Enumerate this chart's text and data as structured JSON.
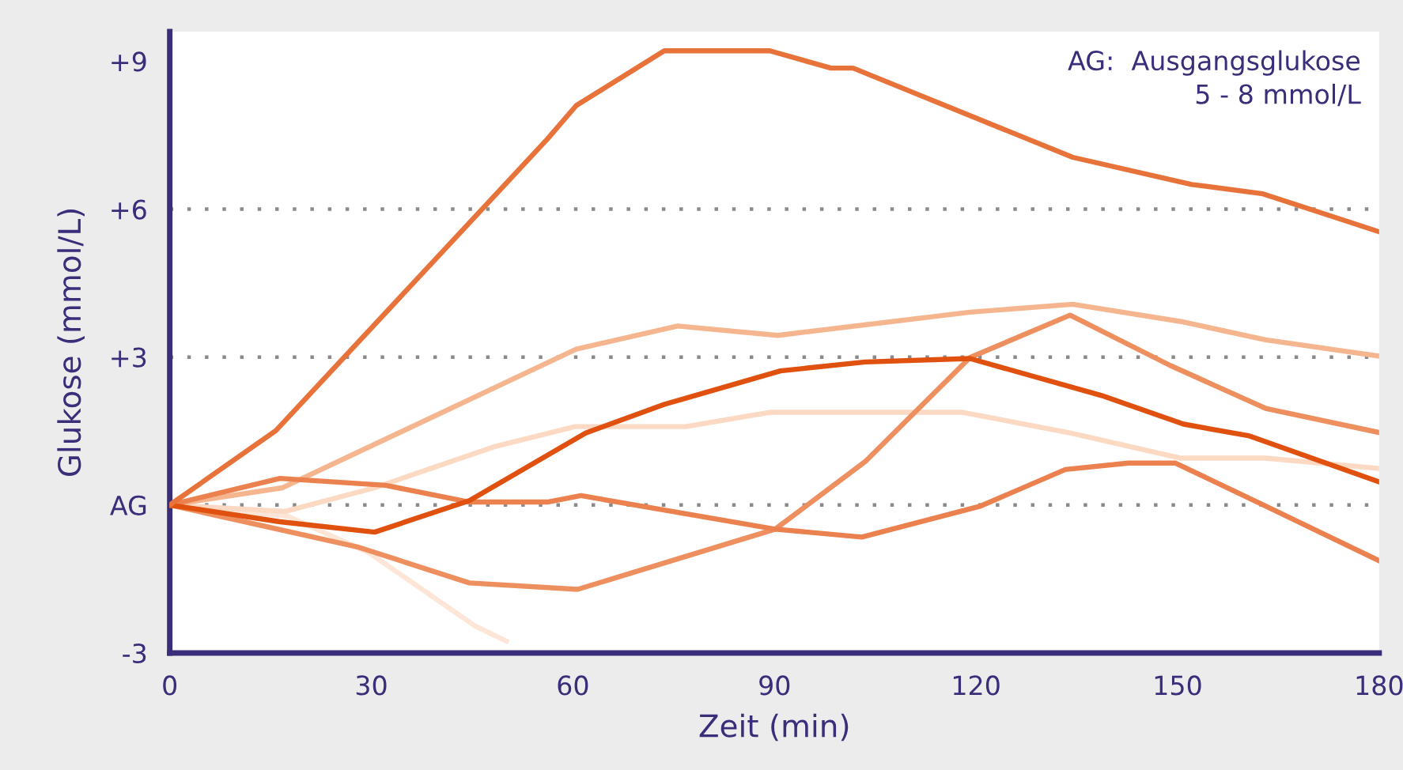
{
  "chart_data": {
    "type": "line",
    "xlabel": "Zeit (min)",
    "ylabel": "Glukose (mmol/L)",
    "annotations": [
      "AG:  Ausgangsglukose\n5 - 8 mmol/L"
    ],
    "xlim": [
      0,
      180
    ],
    "xticks": [
      0,
      30,
      60,
      90,
      120,
      150,
      180
    ],
    "ylim": [
      -3,
      9.6
    ],
    "yticks": [
      {
        "value": 9,
        "label": "+9"
      },
      {
        "value": 6,
        "label": "+6"
      },
      {
        "value": 3,
        "label": "+3"
      },
      {
        "value": 0,
        "label": "AG"
      },
      -3
    ],
    "grid": false,
    "marker": "none",
    "line_style": "solid",
    "ref_lines": [
      {
        "axis": "y",
        "value": 6,
        "label": null,
        "color": "#8a8a8a",
        "line_style": "dotted"
      },
      {
        "axis": "y",
        "value": 3,
        "label": null,
        "color": "#8a8a8a",
        "line_style": "dotted"
      },
      {
        "axis": "y",
        "value": 0,
        "label": null,
        "color": "#8a8a8a",
        "line_style": "dotted"
      }
    ],
    "series": [
      {
        "color": "#fde6d8",
        "x": [
          0,
          17.6,
          29.7,
          45.4,
          50.1
        ],
        "values": [
          0,
          -0.23,
          -0.97,
          -2.45,
          -2.76
        ]
      },
      {
        "color": "#fcd9c3",
        "x": [
          0,
          17.2,
          30.5,
          48.5,
          60.3,
          76.8,
          89.3,
          118,
          134,
          150.5,
          163.1,
          180
        ],
        "values": [
          0,
          -0.13,
          0.35,
          1.19,
          1.59,
          1.59,
          1.88,
          1.88,
          1.46,
          0.95,
          0.95,
          0.74
        ]
      },
      {
        "color": "#f5b68f",
        "x": [
          0,
          16.8,
          60.5,
          75.6,
          90.5,
          119.1,
          134.4,
          150.5,
          163.1,
          180
        ],
        "values": [
          0,
          0.35,
          3.16,
          3.63,
          3.44,
          3.91,
          4.07,
          3.72,
          3.35,
          3.02
        ]
      },
      {
        "color": "#ee8f5f",
        "x": [
          0,
          28.2,
          44.6,
          60.7,
          90.1,
          103.5,
          119.1,
          134,
          148.9,
          163.1,
          180
        ],
        "values": [
          0,
          -0.86,
          -1.58,
          -1.71,
          -0.49,
          0.88,
          2.99,
          3.85,
          2.83,
          1.96,
          1.47
        ]
      },
      {
        "color": "#ec8150",
        "x": [
          0,
          16.4,
          32.1,
          44.6,
          56.2,
          61.2,
          90.1,
          103,
          120.7,
          133.3,
          142.7,
          149.7,
          163.1,
          180
        ],
        "values": [
          0,
          0.54,
          0.4,
          0.06,
          0.06,
          0.19,
          -0.49,
          -0.65,
          -0.02,
          0.72,
          0.85,
          0.85,
          -0.02,
          -1.13
        ]
      },
      {
        "color": "#e0500f",
        "x": [
          0,
          16.4,
          30.5,
          44.6,
          61.9,
          73.6,
          90.9,
          103.5,
          119.1,
          138.7,
          150.9,
          160.7,
          180
        ],
        "values": [
          0,
          -0.34,
          -0.55,
          0.09,
          1.46,
          2.04,
          2.72,
          2.9,
          2.97,
          2.22,
          1.64,
          1.4,
          0.47
        ]
      },
      {
        "color": "#e8733a",
        "x": [
          0,
          15.8,
          56.2,
          60.5,
          73.6,
          89.3,
          98.4,
          101.7,
          134.4,
          152.1,
          162.7,
          180
        ],
        "values": [
          0,
          1.51,
          7.42,
          8.1,
          9.21,
          9.21,
          8.86,
          8.86,
          7.05,
          6.5,
          6.31,
          5.54
        ]
      }
    ]
  }
}
